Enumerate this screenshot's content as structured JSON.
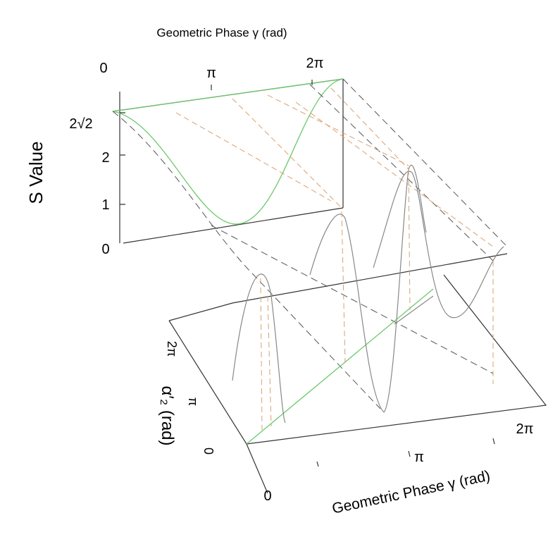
{
  "top_axis": {
    "title": "Geometric Phase γ (rad)",
    "ticks": [
      "0",
      "π",
      "2π"
    ]
  },
  "s_axis": {
    "title": "S Value",
    "ticks": [
      "2√2",
      "2",
      "1",
      "0"
    ]
  },
  "alpha_axis": {
    "title": "α′₂ (rad)",
    "ticks": [
      "2π",
      "π",
      "0"
    ]
  },
  "bottom_axis": {
    "title": "Geometric Phase γ (rad)",
    "ticks": [
      "0",
      "π",
      "2π"
    ]
  }
}
